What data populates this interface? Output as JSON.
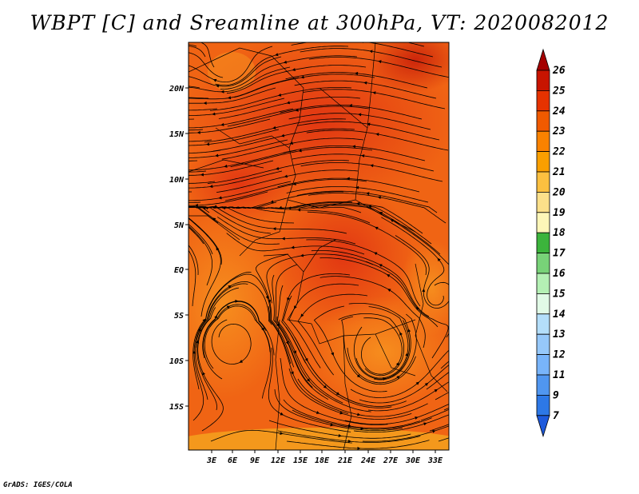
{
  "title": "WBPT [C] and Sreamline at 300hPa, VT: 2020082012",
  "footer": "GrADS: IGES/COLA",
  "map": {
    "lat_ticks": [
      "20N",
      "15N",
      "10N",
      "5N",
      "EQ",
      "5S",
      "10S",
      "15S"
    ],
    "lon_ticks": [
      "3E",
      "6E",
      "9E",
      "12E",
      "15E",
      "18E",
      "21E",
      "24E",
      "27E",
      "30E",
      "33E"
    ],
    "lon_range": [
      0,
      35
    ],
    "lat_range": [
      -19,
      25
    ]
  },
  "colorbar": {
    "labels": [
      "26",
      "25",
      "24",
      "23",
      "22",
      "21",
      "20",
      "19",
      "18",
      "17",
      "16",
      "15",
      "14",
      "13",
      "12",
      "11",
      "9",
      "7"
    ],
    "colors": [
      "#a50000",
      "#c81400",
      "#e63200",
      "#f05a00",
      "#fa8200",
      "#fa9f00",
      "#fcc040",
      "#fce08a",
      "#fdf6b8",
      "#3cb43c",
      "#78d278",
      "#b4f0b4",
      "#e1fae6",
      "#b4defa",
      "#96c8fa",
      "#78b4fa",
      "#5096f0",
      "#2d78e6",
      "#1e5adc"
    ]
  },
  "legend_colors": {
    "field_base": "#f06414",
    "field_warm": "#e63c14",
    "field_cool": "#f58c1e",
    "field_edge": "#f5a51e",
    "streamline": "#000000"
  }
}
